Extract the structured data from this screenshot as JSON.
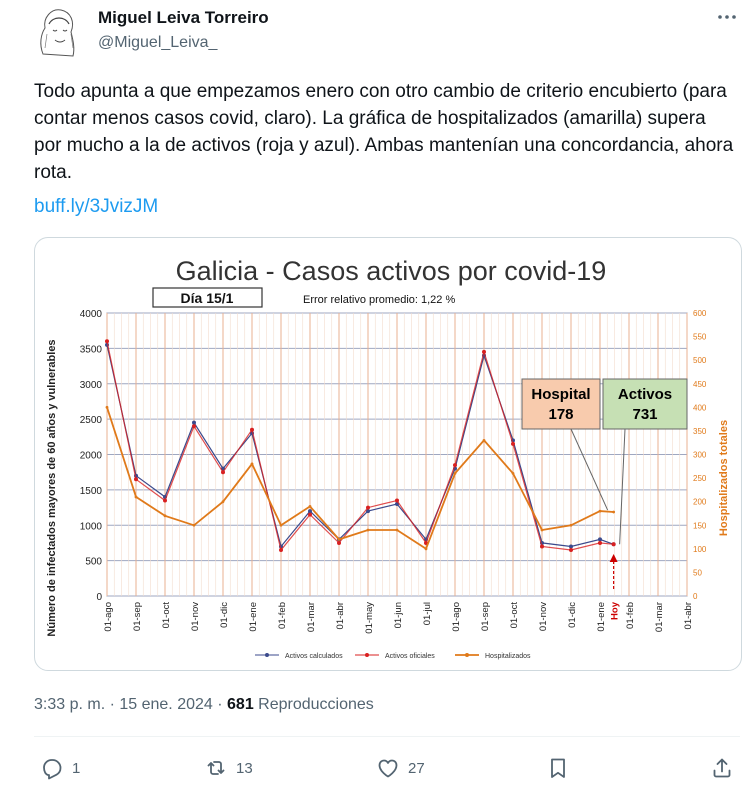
{
  "author": {
    "name": "Miguel Leiva Torreiro",
    "handle": "@Miguel_Leiva_"
  },
  "tweet": {
    "text": "Todo apunta a que empezamos enero con otro cambio de criterio encubierto (para contar menos casos covid, claro). La gráfica de hospitalizados (amarilla) supera por mucho a la de activos (roja y azul). Ambas mantenían una concordancia, ahora rota.",
    "link": "buff.ly/3JvizJM"
  },
  "meta": {
    "time": "3:33 p. m. · 15 ene. 2024 · ",
    "views_count": "681",
    "views_label": " Reproducciones"
  },
  "actions": {
    "replies": "1",
    "retweets": "13",
    "likes": "27"
  },
  "icons": [
    "more-icon",
    "reply-icon",
    "retweet-icon",
    "like-icon",
    "bookmark-icon",
    "share-icon"
  ],
  "colors": {
    "link": "#1d9bf0",
    "activos_calculados": "#3b4a8c",
    "activos_oficiales": "#d92020",
    "hospitalizados": "#e07a1a",
    "hospital_box": "#f8cbad",
    "activos_box": "#c6e0b4"
  },
  "chart_data": {
    "type": "line",
    "title": "Galicia - Casos activos por covid-19",
    "day_label": "Día 15/1",
    "error_label": "Error relativo promedio: 1,22 %",
    "ylabel": "Número de infectados mayores de 60 años y vulnerables",
    "y2label": "Hospitalizados totales",
    "ylim": [
      0,
      4000
    ],
    "y2lim": [
      0,
      600
    ],
    "yticks": [
      "0",
      "500",
      "1000",
      "1500",
      "2000",
      "2500",
      "3000",
      "3500",
      "4000"
    ],
    "y2ticks": [
      "0",
      "50",
      "100",
      "150",
      "200",
      "250",
      "300",
      "350",
      "400",
      "450",
      "500",
      "550",
      "600"
    ],
    "x_labels": [
      "01-ago",
      "01-sep",
      "01-oct",
      "01-nov",
      "01-dic",
      "01-ene",
      "01-feb",
      "01-mar",
      "01-abr",
      "01-may",
      "01-jun",
      "01-jul",
      "01-ago",
      "01-sep",
      "01-oct",
      "01-nov",
      "01-dic",
      "01-ene",
      "Hoy",
      "01-feb",
      "01-mar",
      "01-abr"
    ],
    "today_label": "Hoy",
    "annotations": [
      {
        "label": "Hospital",
        "value": "178"
      },
      {
        "label": "Activos",
        "value": "731"
      }
    ],
    "legend": [
      "Activos calculados",
      "Activos oficiales",
      "Hospitalizados"
    ],
    "x_months": [
      0,
      1,
      2,
      3,
      4,
      5,
      6,
      7,
      8,
      9,
      10,
      11,
      12,
      13,
      14,
      15,
      16,
      17,
      17.47
    ],
    "series": [
      {
        "name": "Activos calculados",
        "values": [
          3550,
          1700,
          1400,
          2450,
          1800,
          2300,
          700,
          1200,
          800,
          1200,
          1300,
          800,
          1800,
          3400,
          2200,
          750,
          700,
          800,
          731
        ]
      },
      {
        "name": "Activos oficiales",
        "values": [
          3600,
          1650,
          1350,
          2400,
          1750,
          2350,
          650,
          1150,
          750,
          1250,
          1350,
          750,
          1850,
          3450,
          2150,
          700,
          650,
          750,
          731
        ]
      },
      {
        "name": "Hospitalizados",
        "values": [
          400,
          210,
          170,
          150,
          200,
          280,
          150,
          190,
          120,
          140,
          140,
          100,
          260,
          330,
          260,
          140,
          150,
          180,
          178
        ]
      }
    ]
  }
}
